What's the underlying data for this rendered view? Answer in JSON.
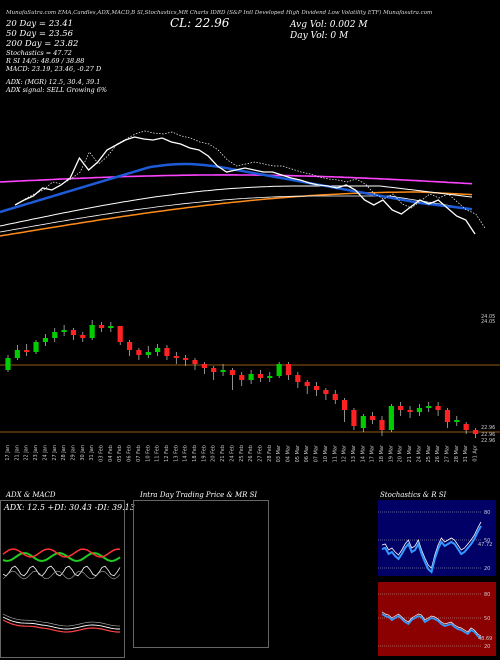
{
  "header": {
    "text": "MunafaSutra.com  EMA,Candles,ADX,MACD,B  SI,Stochastics,MR  Charts  IDRD  (S&P Intl Developed High Dividend Low Volatility ETF) Munafasutra.com"
  },
  "legend": {
    "ma20": "20   Day  = 23.41",
    "ma50": "50   Day  = 23.56",
    "ma200": "200  Day  = 23.82",
    "close": "CL: 22.96",
    "avg_vol": "Avg Vol: 0.002  M",
    "day_vol": "Day Vol: 0   M"
  },
  "indicators": {
    "stochastics": "Stochastics = 47.72",
    "bands": "R          SI 14/5: 48.69 / 38.88",
    "macd": "MACD: 23.19,  23.46,  -0.27  D",
    "adx": "ADX:                    (MGR) 12.5,  30.4,  39.1",
    "adx_signal": "ADX  signal: SELL  Growing  6%"
  },
  "colors": {
    "bg": "#000000",
    "ema20": "#1e5bd8",
    "ema50": "#ffffff",
    "ema200": "#ff8c1a",
    "magenta": "#ff44ff",
    "up_candle": "#00cc00",
    "down_candle": "#ff2222",
    "hline": "#c8741a",
    "stoch_bg": "#000066",
    "rsi_bg": "#8b0000"
  },
  "chart_data": {
    "type": "candlestick",
    "dates": [
      "17 Jan",
      "21 Jan",
      "22 Jan",
      "23 Jan",
      "24 Jan",
      "27 Jan",
      "28 Jan",
      "29 Jan",
      "30 Jan",
      "31 Jan",
      "03 Feb",
      "04 Feb",
      "05 Feb",
      "06 Feb",
      "07 Feb",
      "10 Feb",
      "11 Feb",
      "12 Feb",
      "13 Feb",
      "14 Feb",
      "18 Feb",
      "19 Feb",
      "20 Feb",
      "21 Feb",
      "24 Feb",
      "25 Feb",
      "26 Feb",
      "27 Feb",
      "28 Feb",
      "03 Mar",
      "04 Mar",
      "05 Mar",
      "06 Mar",
      "07 Mar",
      "10 Mar",
      "11 Mar",
      "12 Mar",
      "13 Mar",
      "14 Mar",
      "17 Mar",
      "18 Mar",
      "19 Mar",
      "20 Mar",
      "21 Mar",
      "24 Mar",
      "25 Mar",
      "26 Mar",
      "27 Mar",
      "28 Mar",
      "31 Mar",
      "01 Apr"
    ],
    "price_levels": {
      "upper": "24.05",
      "upper2": "24.05",
      "lower": "22.96",
      "lower2": "22.96",
      "lower3": "22.96"
    },
    "candles": [
      {
        "o": 23.6,
        "c": 23.72,
        "h": 23.75,
        "l": 23.58
      },
      {
        "o": 23.72,
        "c": 23.8,
        "h": 23.85,
        "l": 23.7
      },
      {
        "o": 23.8,
        "c": 23.78,
        "h": 23.86,
        "l": 23.74
      },
      {
        "o": 23.78,
        "c": 23.88,
        "h": 23.9,
        "l": 23.76
      },
      {
        "o": 23.88,
        "c": 23.92,
        "h": 23.96,
        "l": 23.84
      },
      {
        "o": 23.92,
        "c": 23.98,
        "h": 24.02,
        "l": 23.88
      },
      {
        "o": 23.98,
        "c": 24.0,
        "h": 24.05,
        "l": 23.94
      },
      {
        "o": 24.0,
        "c": 23.95,
        "h": 24.02,
        "l": 23.9
      },
      {
        "o": 23.95,
        "c": 23.92,
        "h": 23.98,
        "l": 23.88
      },
      {
        "o": 23.92,
        "c": 24.05,
        "h": 24.1,
        "l": 23.9
      },
      {
        "o": 24.05,
        "c": 24.02,
        "h": 24.08,
        "l": 23.98
      },
      {
        "o": 24.02,
        "c": 24.04,
        "h": 24.08,
        "l": 23.98
      },
      {
        "o": 24.04,
        "c": 23.88,
        "h": 24.04,
        "l": 23.85
      },
      {
        "o": 23.88,
        "c": 23.8,
        "h": 23.9,
        "l": 23.74
      },
      {
        "o": 23.8,
        "c": 23.75,
        "h": 23.82,
        "l": 23.7
      },
      {
        "o": 23.75,
        "c": 23.78,
        "h": 23.84,
        "l": 23.72
      },
      {
        "o": 23.78,
        "c": 23.82,
        "h": 23.86,
        "l": 23.74
      },
      {
        "o": 23.82,
        "c": 23.74,
        "h": 23.85,
        "l": 23.7
      },
      {
        "o": 23.74,
        "c": 23.72,
        "h": 23.78,
        "l": 23.66
      },
      {
        "o": 23.72,
        "c": 23.7,
        "h": 23.75,
        "l": 23.64
      },
      {
        "o": 23.7,
        "c": 23.66,
        "h": 23.72,
        "l": 23.6
      },
      {
        "o": 23.66,
        "c": 23.62,
        "h": 23.68,
        "l": 23.56
      },
      {
        "o": 23.62,
        "c": 23.58,
        "h": 23.64,
        "l": 23.5
      },
      {
        "o": 23.58,
        "c": 23.6,
        "h": 23.66,
        "l": 23.54
      },
      {
        "o": 23.6,
        "c": 23.55,
        "h": 23.62,
        "l": 23.4
      },
      {
        "o": 23.55,
        "c": 23.5,
        "h": 23.58,
        "l": 23.44
      },
      {
        "o": 23.5,
        "c": 23.56,
        "h": 23.6,
        "l": 23.46
      },
      {
        "o": 23.56,
        "c": 23.52,
        "h": 23.6,
        "l": 23.48
      },
      {
        "o": 23.52,
        "c": 23.54,
        "h": 23.58,
        "l": 23.48
      },
      {
        "o": 23.54,
        "c": 23.66,
        "h": 23.68,
        "l": 23.52
      },
      {
        "o": 23.66,
        "c": 23.55,
        "h": 23.68,
        "l": 23.5
      },
      {
        "o": 23.55,
        "c": 23.48,
        "h": 23.58,
        "l": 23.42
      },
      {
        "o": 23.48,
        "c": 23.44,
        "h": 23.5,
        "l": 23.36
      },
      {
        "o": 23.44,
        "c": 23.4,
        "h": 23.48,
        "l": 23.34
      },
      {
        "o": 23.4,
        "c": 23.36,
        "h": 23.42,
        "l": 23.3
      },
      {
        "o": 23.36,
        "c": 23.3,
        "h": 23.4,
        "l": 23.26
      },
      {
        "o": 23.3,
        "c": 23.2,
        "h": 23.32,
        "l": 23.08
      },
      {
        "o": 23.2,
        "c": 23.04,
        "h": 23.22,
        "l": 23.0
      },
      {
        "o": 23.02,
        "c": 23.14,
        "h": 23.16,
        "l": 22.98
      },
      {
        "o": 23.14,
        "c": 23.1,
        "h": 23.18,
        "l": 23.06
      },
      {
        "o": 23.1,
        "c": 23.0,
        "h": 23.14,
        "l": 22.94
      },
      {
        "o": 23.0,
        "c": 23.24,
        "h": 23.26,
        "l": 22.98
      },
      {
        "o": 23.24,
        "c": 23.2,
        "h": 23.28,
        "l": 23.14
      },
      {
        "o": 23.2,
        "c": 23.18,
        "h": 23.24,
        "l": 23.12
      },
      {
        "o": 23.18,
        "c": 23.22,
        "h": 23.26,
        "l": 23.14
      },
      {
        "o": 23.22,
        "c": 23.24,
        "h": 23.28,
        "l": 23.18
      },
      {
        "o": 23.24,
        "c": 23.2,
        "h": 23.28,
        "l": 23.14
      },
      {
        "o": 23.2,
        "c": 23.08,
        "h": 23.22,
        "l": 23.02
      },
      {
        "o": 23.08,
        "c": 23.1,
        "h": 23.14,
        "l": 23.04
      },
      {
        "o": 23.06,
        "c": 23.0,
        "h": 23.08,
        "l": 22.96
      },
      {
        "o": 23.0,
        "c": 22.96,
        "h": 23.02,
        "l": 22.92
      }
    ],
    "ylim": [
      22.9,
      24.15
    ]
  },
  "panels": {
    "adx_title": "ADX  & MACD",
    "adx_values": "ADX: 12.5  +DI: 30.43  -DI: 39.13",
    "intraday_title": "Intra  Day Trading Price  & MR          SI",
    "stoch_title": "Stochastics & R             SI",
    "stoch_ticks": [
      "80",
      "50",
      "20"
    ],
    "rsi_ticks": [
      "80",
      "50",
      "20"
    ],
    "stoch_value": "47.72",
    "rsi_value": "48.69"
  }
}
